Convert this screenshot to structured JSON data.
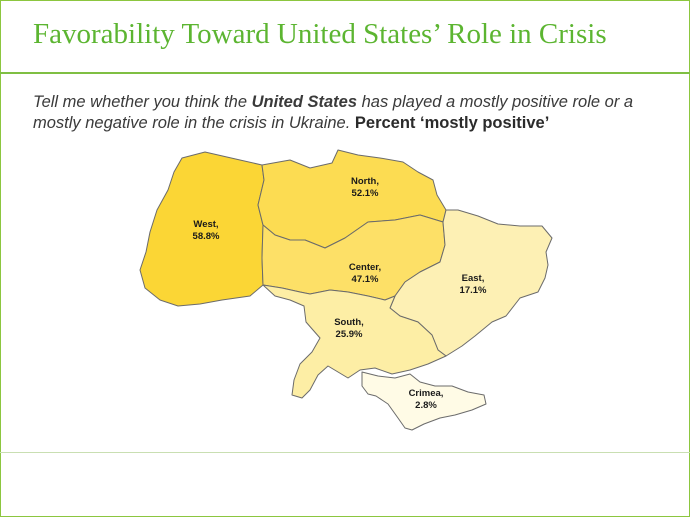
{
  "title": "Favorability Toward United States’ Role in Crisis",
  "question": {
    "part1": "Tell me whether you think the ",
    "bold_subject": "United States",
    "part2": " has played a mostly positive role or a mostly negative role in the crisis in Ukraine. ",
    "tail": "Percent ‘mostly positive’"
  },
  "regions": [
    {
      "id": "west",
      "name": "West,",
      "value": "58.8%",
      "color": "#fbd635"
    },
    {
      "id": "north",
      "name": "North,",
      "value": "52.1%",
      "color": "#fcdc52"
    },
    {
      "id": "center",
      "name": "Center,",
      "value": "47.1%",
      "color": "#fde067"
    },
    {
      "id": "south",
      "name": "South,",
      "value": "25.9%",
      "color": "#fdeea5"
    },
    {
      "id": "east",
      "name": "East,",
      "value": "17.1%",
      "color": "#fdf0b4"
    },
    {
      "id": "crimea",
      "name": "Crimea,",
      "value": "2.8%",
      "color": "#fffbe6"
    }
  ]
}
